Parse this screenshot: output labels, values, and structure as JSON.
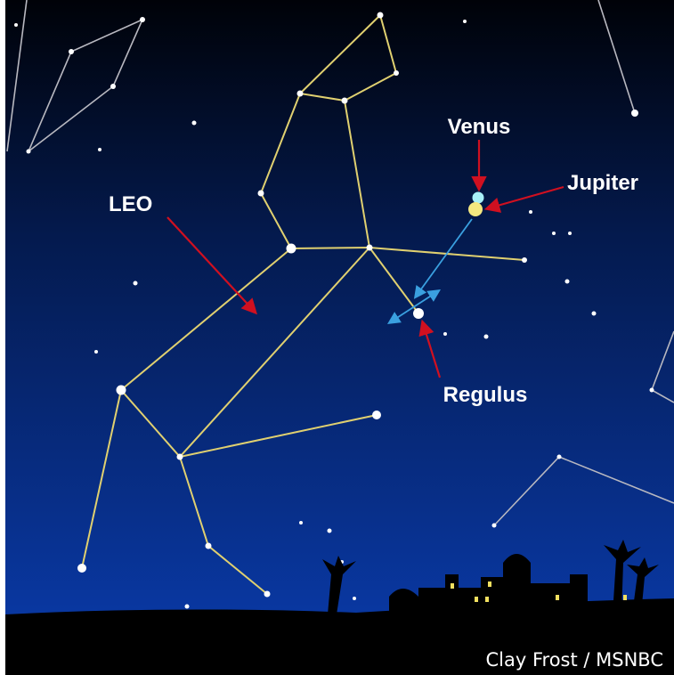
{
  "labels": {
    "leo": "LEO",
    "venus": "Venus",
    "jupiter": "Jupiter",
    "regulus": "Regulus"
  },
  "credit": "Clay Frost / MSNBC"
}
